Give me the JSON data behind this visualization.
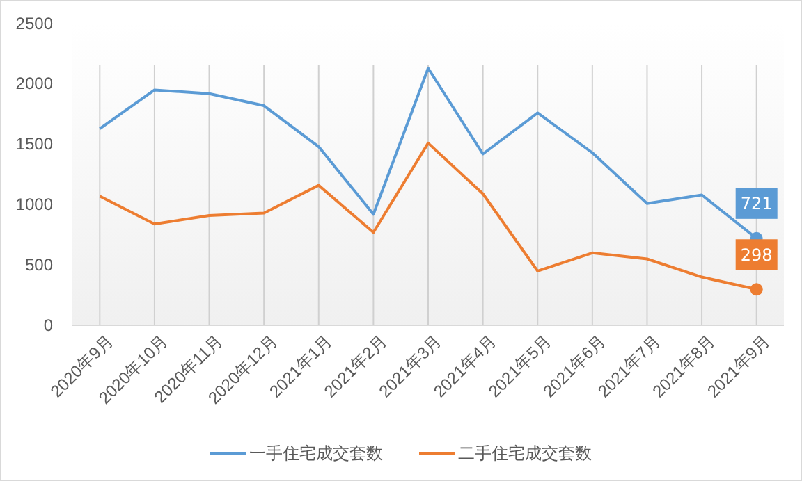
{
  "chart_data": {
    "type": "line",
    "categories": [
      "2020年9月",
      "2020年10月",
      "2020年11月",
      "2020年12月",
      "2021年1月",
      "2021年2月",
      "2021年3月",
      "2021年4月",
      "2021年5月",
      "2021年6月",
      "2021年7月",
      "2021年8月",
      "2021年9月"
    ],
    "series": [
      {
        "name": "一手住宅成交套数",
        "color": "#5b9bd5",
        "values": [
          1630,
          1950,
          1920,
          1820,
          1480,
          920,
          2130,
          1420,
          1760,
          1430,
          1010,
          1080,
          721
        ],
        "value_labels": [
          null,
          null,
          null,
          null,
          null,
          null,
          null,
          null,
          null,
          null,
          null,
          null,
          "721"
        ]
      },
      {
        "name": "二手住宅成交套数",
        "color": "#ed7d31",
        "values": [
          1070,
          840,
          910,
          930,
          1160,
          770,
          1510,
          1090,
          450,
          600,
          550,
          400,
          298
        ],
        "value_labels": [
          null,
          null,
          null,
          null,
          null,
          null,
          null,
          null,
          null,
          null,
          null,
          null,
          "298"
        ]
      }
    ],
    "ylim": [
      0,
      2500
    ],
    "yticks": [
      0,
      500,
      1000,
      1500,
      2000,
      2500
    ],
    "grid": "x",
    "legend": "bottom"
  }
}
